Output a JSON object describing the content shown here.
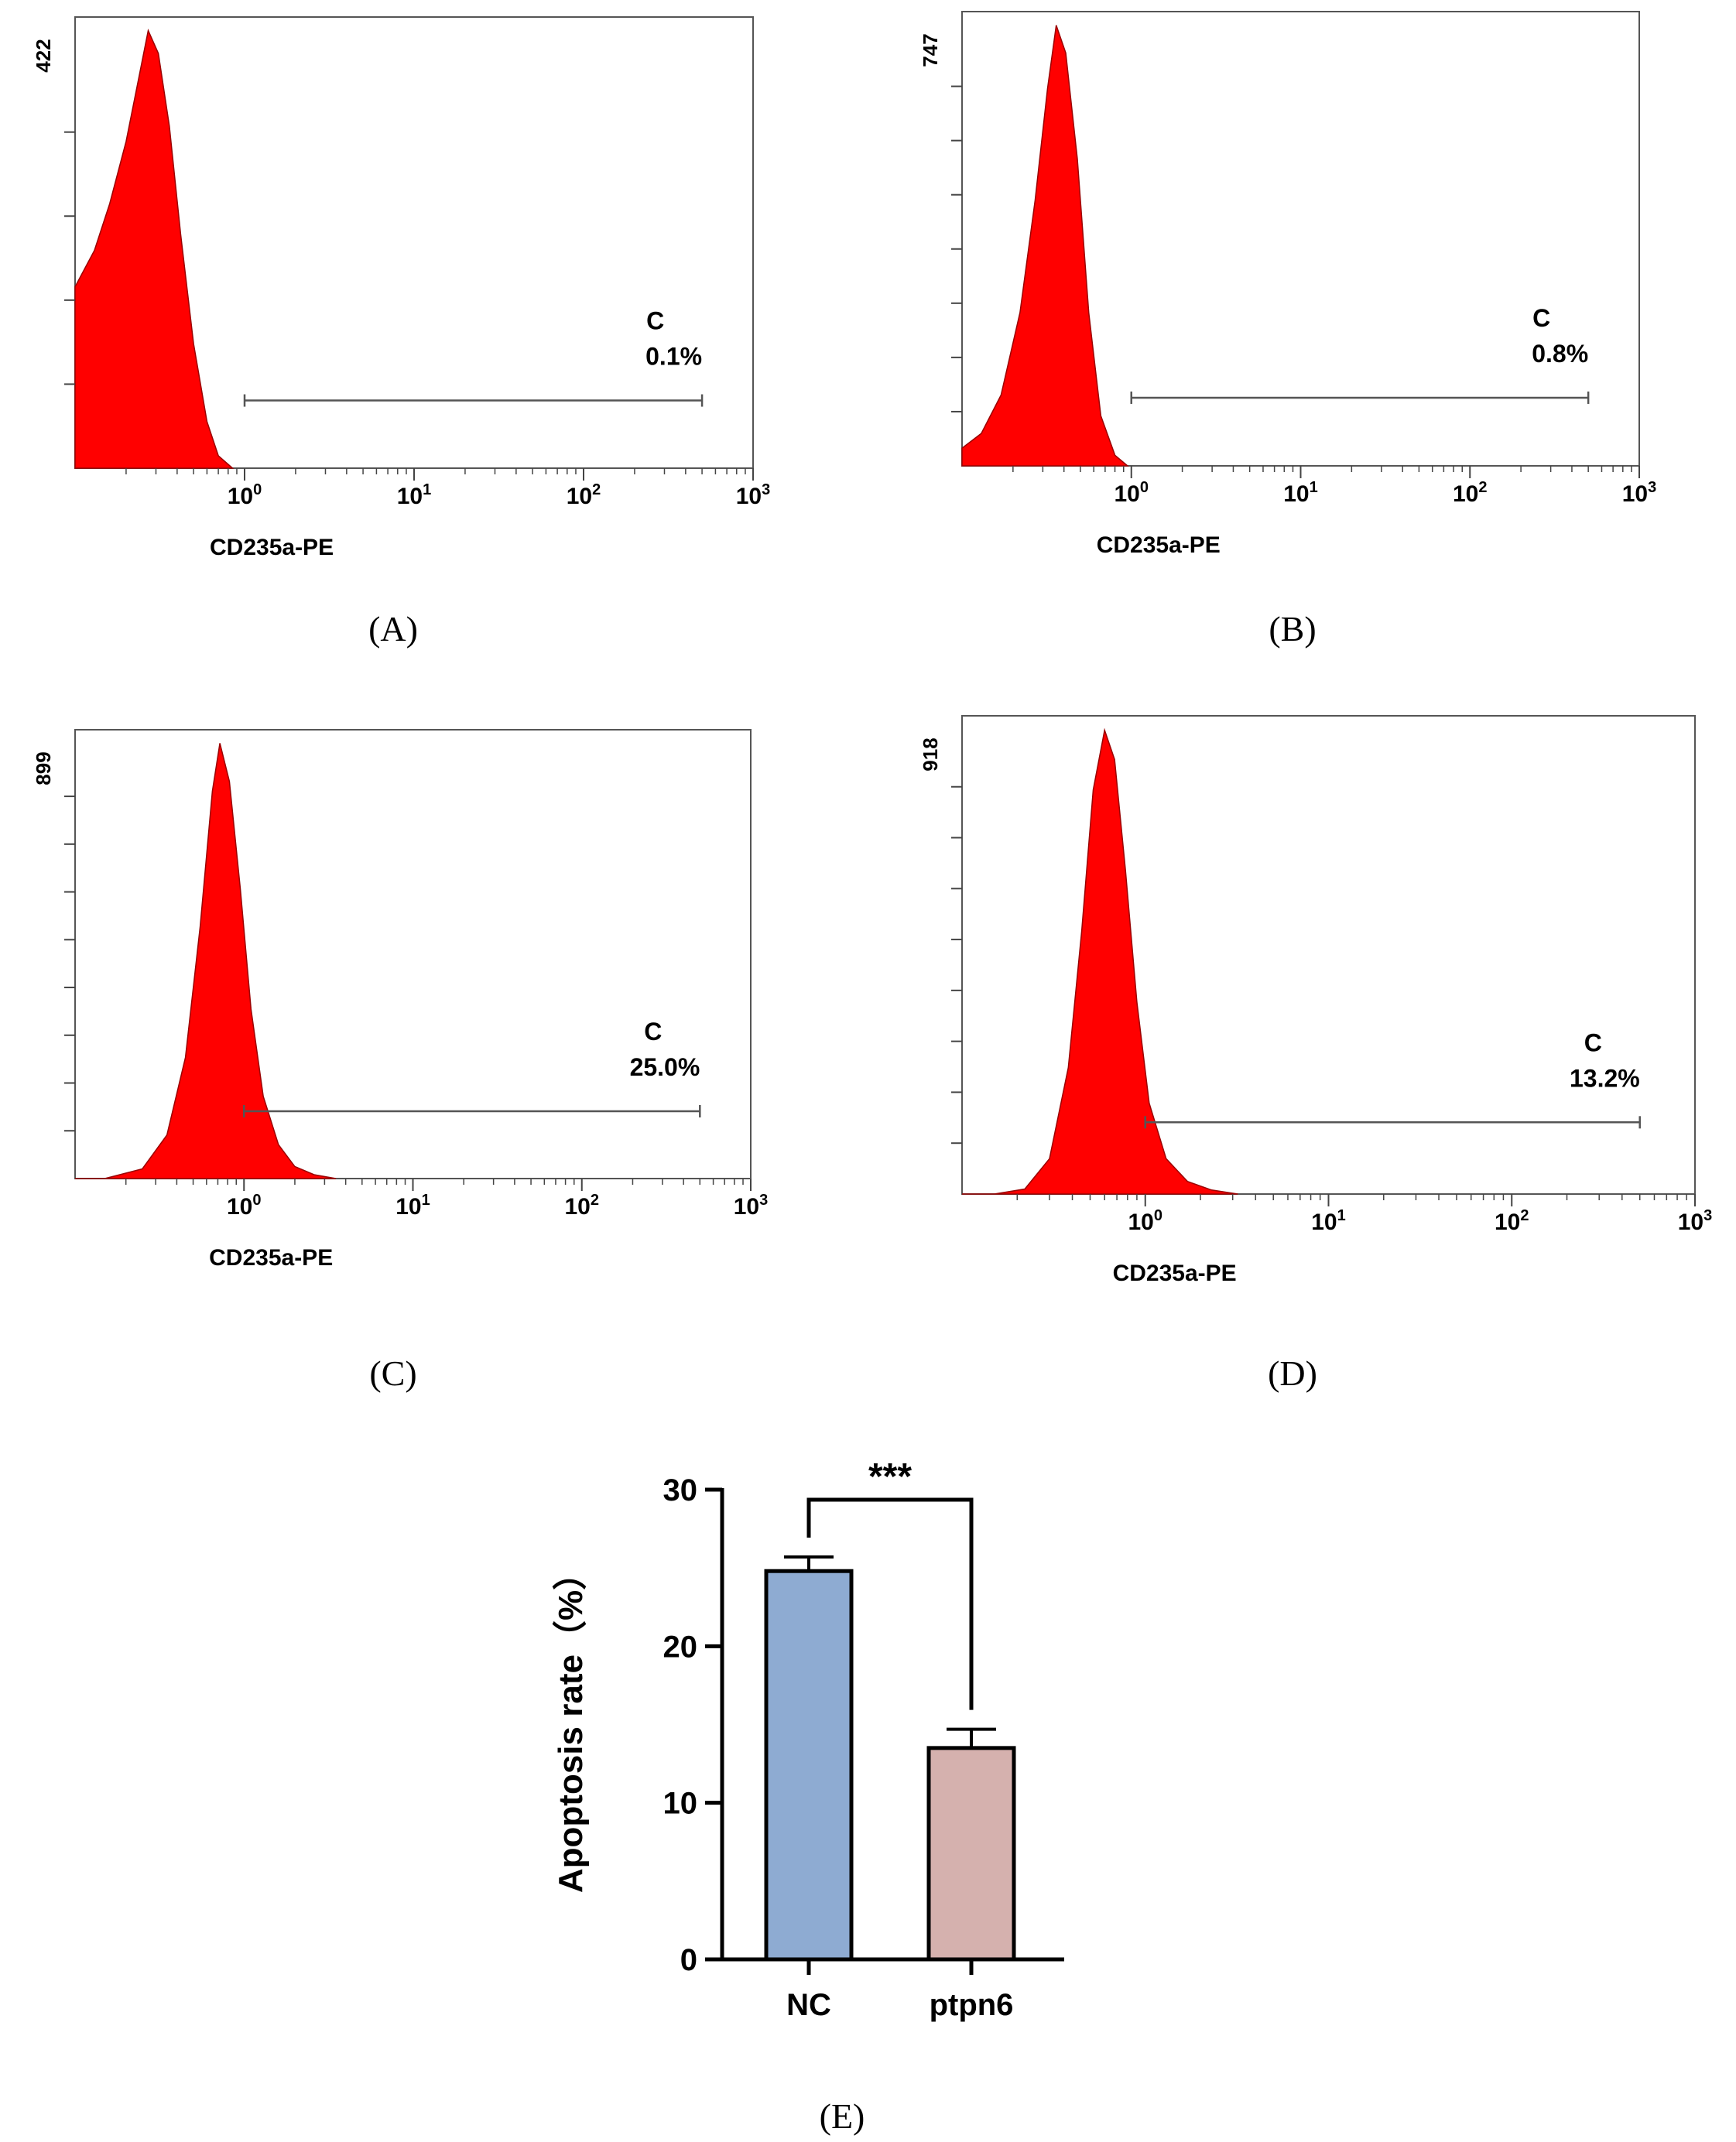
{
  "figure_labels": {
    "A": "(A)",
    "B": "(B)",
    "C": "(C)",
    "D": "(D)",
    "E": "(E)"
  },
  "colors": {
    "histogram_fill": "#ff0000",
    "histogram_edge": "#9a0000",
    "bar_nc": "#8eabd2",
    "bar_ptpn6": "#d5b1ae",
    "axis": "#000000",
    "gate": "#555555"
  },
  "chart_data": [
    {
      "type": "histogram",
      "panel": "A",
      "xlabel": "CD235a-PE",
      "x_scale": "log",
      "xlim": [
        0.1,
        1000
      ],
      "x_ticks": [
        {
          "value": 1,
          "base": "10",
          "exp": "0"
        },
        {
          "value": 10,
          "base": "10",
          "exp": "1"
        },
        {
          "value": 100,
          "base": "10",
          "exp": "2"
        },
        {
          "value": 1000,
          "base": "10",
          "exp": "3"
        }
      ],
      "y_max_label": "422",
      "ylim": [
        0,
        422
      ],
      "y_minor_ticks": 4,
      "gate": {
        "name": "C",
        "percent": "0.1%",
        "from": 1,
        "to": 500
      },
      "distribution": [
        {
          "x": 0.1,
          "y": 0
        },
        {
          "x": 0.1,
          "y": 175
        },
        {
          "x": 0.13,
          "y": 210
        },
        {
          "x": 0.16,
          "y": 255
        },
        {
          "x": 0.2,
          "y": 315
        },
        {
          "x": 0.24,
          "y": 380
        },
        {
          "x": 0.27,
          "y": 422
        },
        {
          "x": 0.31,
          "y": 400
        },
        {
          "x": 0.36,
          "y": 330
        },
        {
          "x": 0.42,
          "y": 225
        },
        {
          "x": 0.5,
          "y": 120
        },
        {
          "x": 0.6,
          "y": 45
        },
        {
          "x": 0.7,
          "y": 12
        },
        {
          "x": 0.85,
          "y": 0
        }
      ]
    },
    {
      "type": "histogram",
      "panel": "B",
      "xlabel": "CD235a-PE",
      "x_scale": "log",
      "xlim": [
        0.1,
        1000
      ],
      "x_ticks": [
        {
          "value": 1,
          "base": "10",
          "exp": "0"
        },
        {
          "value": 10,
          "base": "10",
          "exp": "1"
        },
        {
          "value": 100,
          "base": "10",
          "exp": "2"
        },
        {
          "value": 1000,
          "base": "10",
          "exp": "3"
        }
      ],
      "y_max_label": "747",
      "ylim": [
        0,
        747
      ],
      "y_minor_ticks": 7,
      "gate": {
        "name": "C",
        "percent": "0.8%",
        "from": 1,
        "to": 500
      },
      "distribution": [
        {
          "x": 0.1,
          "y": 0
        },
        {
          "x": 0.1,
          "y": 30
        },
        {
          "x": 0.13,
          "y": 55
        },
        {
          "x": 0.17,
          "y": 120
        },
        {
          "x": 0.22,
          "y": 260
        },
        {
          "x": 0.27,
          "y": 450
        },
        {
          "x": 0.32,
          "y": 640
        },
        {
          "x": 0.36,
          "y": 747
        },
        {
          "x": 0.41,
          "y": 700
        },
        {
          "x": 0.48,
          "y": 520
        },
        {
          "x": 0.56,
          "y": 260
        },
        {
          "x": 0.66,
          "y": 85
        },
        {
          "x": 0.8,
          "y": 18
        },
        {
          "x": 0.95,
          "y": 0
        }
      ]
    },
    {
      "type": "histogram",
      "panel": "C",
      "xlabel": "CD235a-PE",
      "x_scale": "log",
      "xlim": [
        0.1,
        1000
      ],
      "x_ticks": [
        {
          "value": 1,
          "base": "10",
          "exp": "0"
        },
        {
          "value": 10,
          "base": "10",
          "exp": "1"
        },
        {
          "value": 100,
          "base": "10",
          "exp": "2"
        },
        {
          "value": 1000,
          "base": "10",
          "exp": "3"
        }
      ],
      "y_max_label": "899",
      "ylim": [
        0,
        899
      ],
      "y_minor_ticks": 8,
      "gate": {
        "name": "C",
        "percent": "25.0%",
        "from": 1,
        "to": 500
      },
      "distribution": [
        {
          "x": 0.15,
          "y": 0
        },
        {
          "x": 0.25,
          "y": 20
        },
        {
          "x": 0.35,
          "y": 90
        },
        {
          "x": 0.45,
          "y": 250
        },
        {
          "x": 0.55,
          "y": 520
        },
        {
          "x": 0.65,
          "y": 800
        },
        {
          "x": 0.72,
          "y": 899
        },
        {
          "x": 0.82,
          "y": 820
        },
        {
          "x": 0.95,
          "y": 600
        },
        {
          "x": 1.1,
          "y": 350
        },
        {
          "x": 1.3,
          "y": 170
        },
        {
          "x": 1.6,
          "y": 70
        },
        {
          "x": 2.0,
          "y": 25
        },
        {
          "x": 2.6,
          "y": 8
        },
        {
          "x": 3.5,
          "y": 0
        }
      ]
    },
    {
      "type": "histogram",
      "panel": "D",
      "xlabel": "CD235a-PE",
      "x_scale": "log",
      "xlim": [
        0.1,
        1000
      ],
      "x_ticks": [
        {
          "value": 1,
          "base": "10",
          "exp": "0"
        },
        {
          "value": 10,
          "base": "10",
          "exp": "1"
        },
        {
          "value": 100,
          "base": "10",
          "exp": "2"
        },
        {
          "value": 1000,
          "base": "10",
          "exp": "3"
        }
      ],
      "y_max_label": "918",
      "ylim": [
        0,
        918
      ],
      "y_minor_ticks": 8,
      "gate": {
        "name": "C",
        "percent": "13.2%",
        "from": 1,
        "to": 500
      },
      "distribution": [
        {
          "x": 0.15,
          "y": 0
        },
        {
          "x": 0.22,
          "y": 10
        },
        {
          "x": 0.3,
          "y": 70
        },
        {
          "x": 0.38,
          "y": 250
        },
        {
          "x": 0.45,
          "y": 520
        },
        {
          "x": 0.52,
          "y": 800
        },
        {
          "x": 0.6,
          "y": 918
        },
        {
          "x": 0.68,
          "y": 860
        },
        {
          "x": 0.78,
          "y": 640
        },
        {
          "x": 0.9,
          "y": 380
        },
        {
          "x": 1.05,
          "y": 180
        },
        {
          "x": 1.3,
          "y": 70
        },
        {
          "x": 1.7,
          "y": 25
        },
        {
          "x": 2.3,
          "y": 8
        },
        {
          "x": 3.2,
          "y": 0
        }
      ]
    },
    {
      "type": "bar",
      "panel": "E",
      "categories": [
        "NC",
        "ptpn6"
      ],
      "values": [
        24.8,
        13.5
      ],
      "errors": [
        0.9,
        1.2
      ],
      "ylabel": "Apoptosis rate（%）",
      "ylim": [
        0,
        30
      ],
      "y_ticks": [
        "0",
        "10",
        "20",
        "30"
      ],
      "significance": "***"
    }
  ]
}
